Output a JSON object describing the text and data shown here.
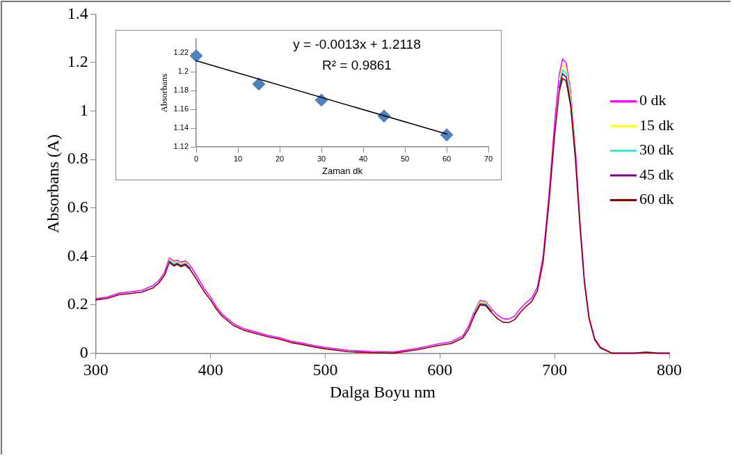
{
  "chart_data": [
    {
      "type": "line",
      "xlabel": "Dalga Boyu nm",
      "ylabel": "Absorbans (A)",
      "xlim": [
        300,
        800
      ],
      "xticks": [
        300,
        400,
        500,
        600,
        700,
        800
      ],
      "ylim": [
        0,
        1.4
      ],
      "yticks": [
        0,
        0.2,
        0.4,
        0.6,
        0.8,
        1,
        1.2,
        1.4
      ],
      "grid": false,
      "legend": "right",
      "marker": "none",
      "line_style": "solid",
      "x": [
        300,
        310,
        320,
        330,
        340,
        350,
        355,
        360,
        364,
        368,
        371,
        374,
        378,
        382,
        386,
        390,
        395,
        400,
        405,
        410,
        420,
        430,
        440,
        450,
        460,
        470,
        480,
        490,
        500,
        520,
        540,
        560,
        580,
        600,
        610,
        620,
        625,
        630,
        635,
        640,
        645,
        650,
        655,
        660,
        665,
        670,
        675,
        680,
        685,
        690,
        695,
        700,
        704,
        707,
        710,
        714,
        718,
        722,
        726,
        730,
        735,
        740,
        750,
        760,
        770,
        780,
        790,
        800
      ],
      "series": [
        {
          "name": "0 dk",
          "color": "#ff00ff",
          "values": [
            0.225,
            0.232,
            0.248,
            0.253,
            0.26,
            0.28,
            0.3,
            0.335,
            0.393,
            0.38,
            0.384,
            0.376,
            0.381,
            0.364,
            0.334,
            0.303,
            0.263,
            0.232,
            0.192,
            0.162,
            0.122,
            0.1,
            0.087,
            0.074,
            0.064,
            0.05,
            0.042,
            0.032,
            0.024,
            0.012,
            0.007,
            0.005,
            0.02,
            0.04,
            0.047,
            0.072,
            0.112,
            0.173,
            0.218,
            0.213,
            0.183,
            0.158,
            0.143,
            0.141,
            0.153,
            0.183,
            0.208,
            0.228,
            0.273,
            0.4,
            0.65,
            0.95,
            1.15,
            1.215,
            1.2,
            1.08,
            0.85,
            0.55,
            0.3,
            0.15,
            0.06,
            0.025,
            0,
            0,
            0,
            0.005,
            0,
            0
          ]
        },
        {
          "name": "15 dk",
          "color": "#ffff00",
          "values": [
            null,
            null,
            null,
            null,
            null,
            null,
            null,
            null,
            0.388,
            0.374,
            0.379,
            0.37,
            0.376,
            0.359,
            null,
            null,
            null,
            null,
            null,
            null,
            null,
            null,
            null,
            null,
            null,
            null,
            null,
            null,
            null,
            null,
            null,
            null,
            null,
            null,
            null,
            null,
            null,
            0.168,
            0.212,
            0.208,
            0.178,
            null,
            null,
            null,
            null,
            null,
            null,
            null,
            null,
            null,
            null,
            null,
            1.13,
            1.19,
            1.177,
            1.062,
            0.838,
            null,
            null,
            null,
            null,
            null,
            null,
            null,
            null,
            null,
            null,
            null
          ]
        },
        {
          "name": "30 dk",
          "color": "#00ffff",
          "values": [
            null,
            null,
            null,
            null,
            null,
            null,
            null,
            null,
            0.383,
            0.369,
            0.375,
            0.365,
            0.372,
            0.355,
            null,
            null,
            null,
            null,
            null,
            null,
            null,
            null,
            null,
            null,
            null,
            null,
            null,
            null,
            null,
            null,
            null,
            null,
            null,
            null,
            null,
            null,
            null,
            0.164,
            0.207,
            0.204,
            0.175,
            null,
            null,
            null,
            null,
            null,
            null,
            null,
            null,
            null,
            null,
            null,
            1.11,
            1.17,
            1.157,
            1.045,
            0.828,
            null,
            null,
            null,
            null,
            null,
            null,
            null,
            null,
            null,
            null,
            null
          ]
        },
        {
          "name": "45 dk",
          "color": "#800080",
          "values": [
            null,
            null,
            null,
            null,
            null,
            null,
            null,
            null,
            0.379,
            0.364,
            0.371,
            0.361,
            0.368,
            0.351,
            null,
            null,
            null,
            null,
            null,
            null,
            null,
            null,
            null,
            null,
            null,
            null,
            null,
            null,
            null,
            null,
            null,
            null,
            null,
            null,
            null,
            null,
            null,
            0.16,
            0.203,
            0.2,
            0.172,
            null,
            null,
            null,
            null,
            null,
            null,
            null,
            null,
            null,
            null,
            null,
            1.095,
            1.155,
            1.14,
            1.03,
            0.818,
            null,
            null,
            null,
            null,
            null,
            null,
            null,
            null,
            null,
            null,
            null
          ]
        },
        {
          "name": "60 dk",
          "color": "#800000",
          "values": [
            0.22,
            0.226,
            0.241,
            0.246,
            0.252,
            0.27,
            0.29,
            0.323,
            0.375,
            0.36,
            0.367,
            0.357,
            0.364,
            0.347,
            0.318,
            0.288,
            0.25,
            0.22,
            0.182,
            0.153,
            0.114,
            0.093,
            0.08,
            0.068,
            0.058,
            0.044,
            0.036,
            0.026,
            0.018,
            0.006,
            0.002,
            0,
            0.014,
            0.033,
            0.04,
            0.063,
            0.098,
            0.156,
            0.199,
            0.196,
            0.168,
            0.143,
            0.128,
            0.126,
            0.138,
            0.168,
            0.193,
            0.213,
            0.258,
            0.378,
            0.618,
            0.9,
            1.08,
            1.135,
            1.125,
            1.02,
            0.81,
            0.53,
            0.29,
            0.143,
            0.055,
            0.021,
            0,
            0,
            0,
            0.003,
            0,
            0
          ]
        }
      ]
    },
    {
      "type": "scatter",
      "xlabel": "Zaman dk",
      "ylabel": "Absorbans",
      "xlim": [
        0,
        70
      ],
      "xticks": [
        0,
        10,
        20,
        30,
        40,
        50,
        60,
        70
      ],
      "ylim": [
        1.12,
        1.235
      ],
      "yticks": [
        1.12,
        1.14,
        1.16,
        1.18,
        1.2,
        1.22
      ],
      "grid": false,
      "legend": false,
      "marker": "diamond",
      "annotations": [
        "y = -0.0013x + 1.2118",
        "R² = 0.9861"
      ],
      "x": [
        0,
        15,
        30,
        45,
        60
      ],
      "series": [
        {
          "color": "#4f81bd",
          "values": [
            1.217,
            1.187,
            1.17,
            1.153,
            1.133
          ]
        },
        {
          "type": "line",
          "color": "#000000",
          "marker": "none",
          "x": [
            0,
            60
          ],
          "values": [
            1.2118,
            1.1338
          ]
        }
      ]
    }
  ]
}
